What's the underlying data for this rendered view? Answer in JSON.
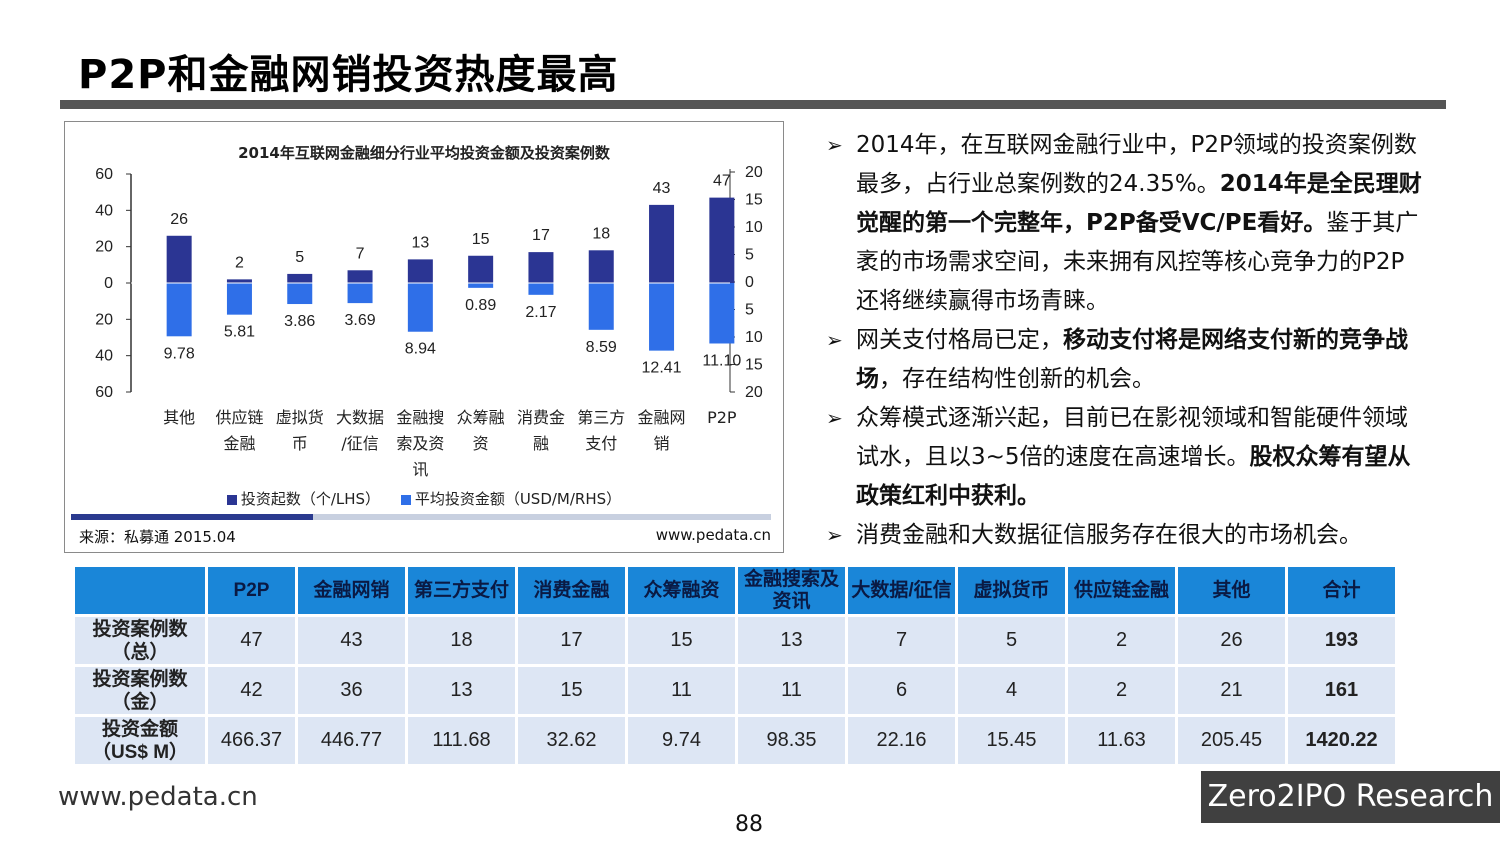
{
  "title": "P2P和金融网销投资热度最高",
  "chart": {
    "source": "来源：私募通 2015.04",
    "website": "www.pedata.cn"
  },
  "chart_data": {
    "type": "bar",
    "title": "2014年互联网金融细分行业平均投资金额及投资案例数",
    "categories": [
      [
        "其他"
      ],
      [
        "供应链",
        "金融"
      ],
      [
        "虚拟货",
        "币"
      ],
      [
        "大数据",
        "/征信"
      ],
      [
        "金融搜",
        "索及资",
        "讯"
      ],
      [
        "众筹融",
        "资"
      ],
      [
        "消费金",
        "融"
      ],
      [
        "第三方",
        "支付"
      ],
      [
        "金融网",
        "销"
      ],
      [
        "P2P"
      ]
    ],
    "series": [
      {
        "name": "投资起数（个/LHS）",
        "values": [
          26,
          2,
          5,
          7,
          13,
          15,
          17,
          18,
          43,
          47
        ],
        "color": "#2b3593",
        "axis": "left",
        "direction": "up",
        "labels": [
          "26",
          "2",
          "5",
          "7",
          "13",
          "15",
          "17",
          "18",
          "43",
          "47"
        ]
      },
      {
        "name": "平均投资金额（USD/M/RHS）",
        "values": [
          9.78,
          5.81,
          3.86,
          3.69,
          8.94,
          0.89,
          2.17,
          8.59,
          12.41,
          11.1
        ],
        "color": "#2f6fe8",
        "axis": "right",
        "direction": "down",
        "labels": [
          "9.78",
          "5.81",
          "3.86",
          "3.69",
          "8.94",
          "0.89",
          "2.17",
          "8.59",
          "12.41",
          "11.10"
        ]
      }
    ],
    "left_ticks": [
      "60",
      "40",
      "20",
      "0",
      "20",
      "40",
      "60"
    ],
    "right_ticks": [
      "20",
      "15",
      "10",
      "5",
      "0",
      "5",
      "10",
      "15",
      "20"
    ],
    "ylim_left": [
      -60,
      60
    ],
    "ylim_right": [
      -20,
      20
    ]
  },
  "bullets": [
    {
      "parts": [
        {
          "text": "2014年，在互联网金融行业中，P2P领域的投资案例数最多，占行业总案例数的24.35%。",
          "bold": false
        },
        {
          "text": "2014年是全民理财觉醒的第一个完整年，P2P备受VC/PE看好。",
          "bold": true
        },
        {
          "text": "鉴于其广袤的市场需求空间，未来拥有风控等核心竞争力的P2P还将继续赢得市场青睐。",
          "bold": false
        }
      ]
    },
    {
      "parts": [
        {
          "text": "网关支付格局已定，",
          "bold": false
        },
        {
          "text": "移动支付将是网络支付新的竞争战场",
          "bold": true
        },
        {
          "text": "，存在结构性创新的机会。",
          "bold": false
        }
      ]
    },
    {
      "parts": [
        {
          "text": "众筹模式逐渐兴起，目前已在影视领域和智能硬件领域试水，且以3~5倍的速度在高速增长。",
          "bold": false
        },
        {
          "text": "股权众筹有望从政策红利中获利。",
          "bold": true
        }
      ]
    },
    {
      "parts": [
        {
          "text": "消费金融和大数据征信服务存在很大的市场机会。",
          "bold": false
        }
      ]
    }
  ],
  "table": {
    "headers": [
      "P2P",
      "金融网销",
      "第三方支付",
      "消费金融",
      "众筹融资",
      "金融搜索及资讯",
      "大数据/征信",
      "虚拟货币",
      "供应链金融",
      "其他",
      "合计"
    ],
    "rows": [
      {
        "label": "投资案例数（总）",
        "values": [
          "47",
          "43",
          "18",
          "17",
          "15",
          "13",
          "7",
          "5",
          "2",
          "26",
          "193"
        ]
      },
      {
        "label": "投资案例数（金）",
        "values": [
          "42",
          "36",
          "13",
          "15",
          "11",
          "11",
          "6",
          "4",
          "2",
          "21",
          "161"
        ]
      },
      {
        "label": "投资金额（US$ M）",
        "values": [
          "466.37",
          "446.77",
          "111.68",
          "32.62",
          "9.74",
          "98.35",
          "22.16",
          "15.45",
          "11.63",
          "205.45",
          "1420.22"
        ]
      }
    ]
  },
  "footer": {
    "url": "www.pedata.cn",
    "page": "88",
    "brand": "Zero2IPO Research"
  }
}
